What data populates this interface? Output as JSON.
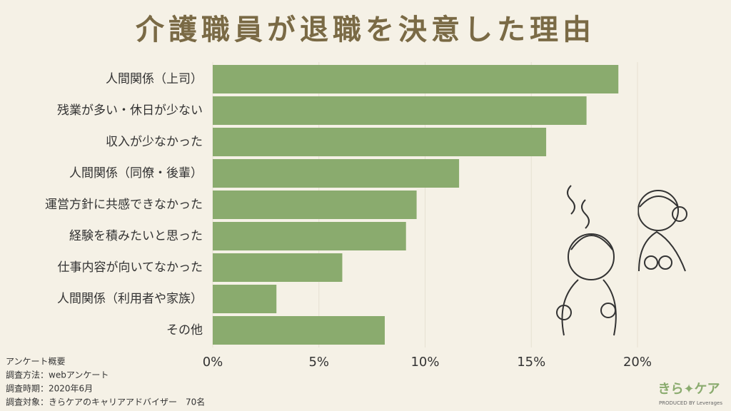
{
  "chart_data": {
    "type": "barh",
    "title": "介護職員が退職を決意した理由",
    "categories": [
      "人間関係（上司）",
      "残業が多い・休日が少ない",
      "収入が少なかった",
      "人間関係（同僚・後輩）",
      "運営方針に共感できなかった",
      "経験を積みたいと思った",
      "仕事内容が向いてなかった",
      "人間関係（利用者や家族）",
      "その他"
    ],
    "values": [
      19.1,
      17.6,
      15.7,
      11.6,
      9.6,
      9.1,
      6.1,
      3.0,
      8.1
    ],
    "color": "#8aab6e",
    "xlim": [
      0,
      20
    ],
    "xticks": [
      {
        "value": 0,
        "label": "0%"
      },
      {
        "value": 5,
        "label": "5%"
      },
      {
        "value": 10,
        "label": "10%"
      },
      {
        "value": 15,
        "label": "15%"
      },
      {
        "value": 20,
        "label": "20%"
      }
    ],
    "grid": true,
    "notes": [
      "アンケート概要",
      "調査方法：webアンケート",
      "調査時期：2020年6月",
      "調査対象：きらケアのキャリアアドバイザー　70名"
    ],
    "brand": {
      "name": "きら✦ケア",
      "credit": "PRODUCED BY Leverages"
    }
  }
}
